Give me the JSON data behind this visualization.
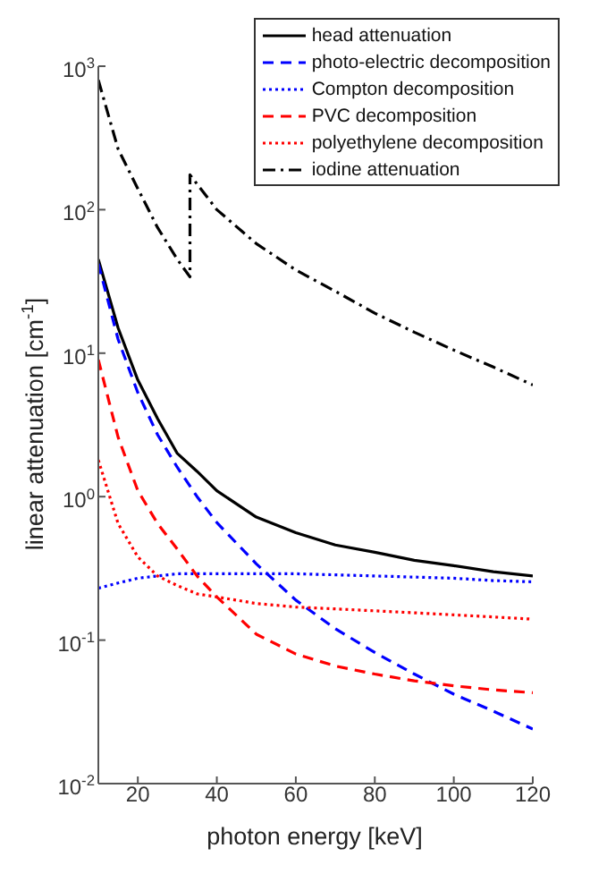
{
  "chart_data": {
    "type": "line",
    "xlabel": "photon energy [keV]",
    "ylabel": "linear attenuation [cm$^{-1}$]",
    "log": "y",
    "xlim": [
      10,
      120
    ],
    "xticks": [
      20,
      40,
      60,
      80,
      100,
      120
    ],
    "ylim": [
      0.01,
      1000
    ],
    "yticks": [
      {
        "value": 0.01,
        "label": "10$^{-2}$"
      },
      {
        "value": 0.1,
        "label": "10$^{-1}$"
      },
      {
        "value": 1,
        "label": "10$^{0}$"
      },
      {
        "value": 10,
        "label": "10$^{1}$"
      },
      {
        "value": 100,
        "label": "10$^{2}$"
      },
      {
        "value": 1000,
        "label": "10$^{3}$"
      }
    ],
    "grid": false,
    "legend": "top right",
    "marker": "none",
    "series": [
      {
        "name": "head attenuation",
        "color": "#000000",
        "line_style": "solid",
        "x": [
          10,
          15,
          20,
          25,
          30,
          35,
          40,
          50,
          60,
          70,
          80,
          90,
          100,
          110,
          120
        ],
        "values": [
          45,
          15,
          6.5,
          3.5,
          2.0,
          1.5,
          1.1,
          0.72,
          0.56,
          0.46,
          0.41,
          0.36,
          0.33,
          0.3,
          0.28
        ]
      },
      {
        "name": "photo-electric decomposition",
        "color": "#0000ff",
        "line_style": "dashed",
        "x": [
          10,
          15,
          20,
          25,
          30,
          35,
          40,
          50,
          60,
          70,
          80,
          90,
          100,
          110,
          120
        ],
        "values": [
          42,
          12.5,
          5.3,
          2.7,
          1.6,
          1.0,
          0.66,
          0.34,
          0.19,
          0.12,
          0.082,
          0.058,
          0.042,
          0.032,
          0.024
        ]
      },
      {
        "name": "Compton decomposition",
        "color": "#0000ff",
        "line_style": "dotted",
        "x": [
          10,
          15,
          20,
          25,
          30,
          40,
          50,
          60,
          70,
          80,
          90,
          100,
          110,
          120
        ],
        "values": [
          0.23,
          0.25,
          0.27,
          0.28,
          0.29,
          0.29,
          0.29,
          0.29,
          0.285,
          0.28,
          0.275,
          0.27,
          0.26,
          0.255
        ]
      },
      {
        "name": "PVC decomposition",
        "color": "#ff0000",
        "line_style": "dashed",
        "x": [
          10,
          15,
          20,
          25,
          30,
          35,
          40,
          50,
          60,
          70,
          80,
          90,
          100,
          110,
          120
        ],
        "values": [
          9,
          2.6,
          1.1,
          0.65,
          0.43,
          0.28,
          0.2,
          0.11,
          0.08,
          0.066,
          0.058,
          0.052,
          0.048,
          0.045,
          0.043
        ]
      },
      {
        "name": "polyethylene decomposition",
        "color": "#ff0000",
        "line_style": "dotted",
        "x": [
          10,
          15,
          20,
          25,
          30,
          35,
          40,
          50,
          60,
          70,
          80,
          90,
          100,
          110,
          120
        ],
        "values": [
          1.8,
          0.65,
          0.38,
          0.28,
          0.24,
          0.21,
          0.2,
          0.18,
          0.17,
          0.165,
          0.16,
          0.155,
          0.15,
          0.145,
          0.14
        ]
      },
      {
        "name": "iodine attenuation",
        "color": "#000000",
        "line_style": "dashdot",
        "x": [
          10,
          15,
          20,
          25,
          30,
          33.2,
          33.2,
          40,
          50,
          60,
          70,
          80,
          90,
          100,
          110,
          120
        ],
        "values": [
          800,
          265,
          140,
          75,
          45,
          34,
          175,
          100,
          58,
          38,
          27,
          19,
          14,
          10.5,
          8,
          6
        ]
      }
    ]
  }
}
